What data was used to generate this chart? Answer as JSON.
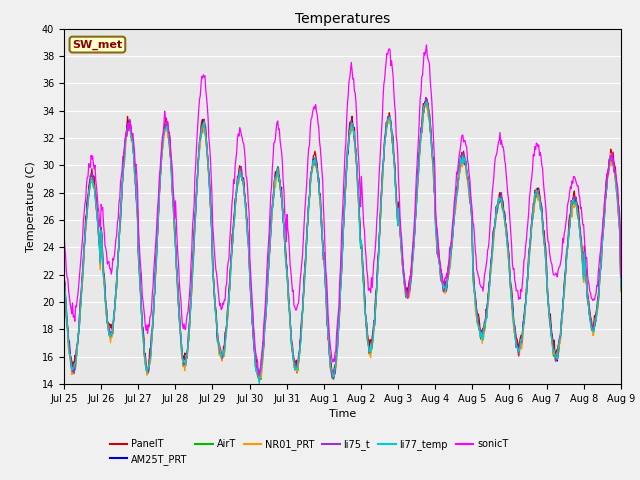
{
  "title": "Temperatures",
  "xlabel": "Time",
  "ylabel": "Temperature (C)",
  "ylim": [
    14,
    40
  ],
  "station_label": "SW_met",
  "x_tick_labels": [
    "Jul 25",
    "Jul 26",
    "Jul 27",
    "Jul 28",
    "Jul 29",
    "Jul 30",
    "Jul 31",
    "Aug 1",
    "Aug 2",
    "Aug 3",
    "Aug 4",
    "Aug 5",
    "Aug 6",
    "Aug 7",
    "Aug 8",
    "Aug 9"
  ],
  "series": [
    {
      "name": "PanelT",
      "color": "#cc0000"
    },
    {
      "name": "AM25T_PRT",
      "color": "#0000cc"
    },
    {
      "name": "AirT",
      "color": "#00bb00"
    },
    {
      "name": "NR01_PRT",
      "color": "#ff9900"
    },
    {
      "name": "li75_t",
      "color": "#9933cc"
    },
    {
      "name": "li77_temp",
      "color": "#00cccc"
    },
    {
      "name": "sonicT",
      "color": "#ff00ff"
    }
  ],
  "fig_width": 6.4,
  "fig_height": 4.8,
  "dpi": 100,
  "plot_bg_color": "#e8e8e8",
  "fig_bg_color": "#f0f0f0",
  "grid_color": "#ffffff",
  "yticks": [
    14,
    16,
    18,
    20,
    22,
    24,
    26,
    28,
    30,
    32,
    34,
    36,
    38,
    40
  ],
  "title_fontsize": 10,
  "label_fontsize": 8,
  "tick_fontsize": 7,
  "legend_fontsize": 7,
  "line_width": 0.9
}
